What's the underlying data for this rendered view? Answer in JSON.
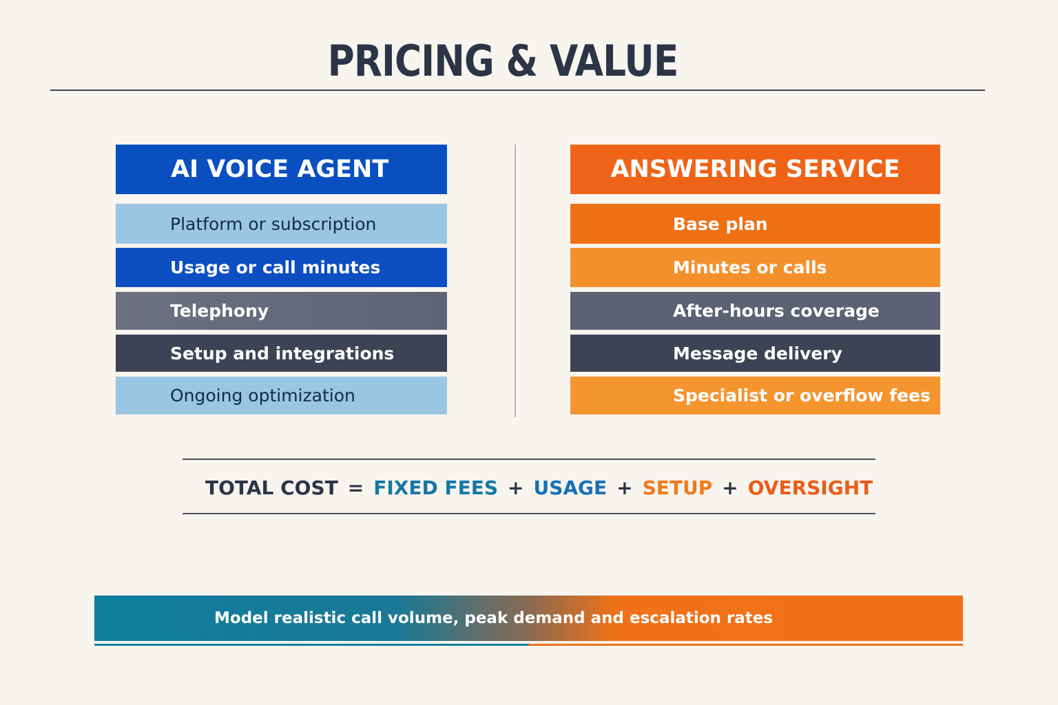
{
  "title": "PRICING & VALUE",
  "ai_voice_agent": {
    "header": "AI VOICE AGENT",
    "items": [
      "Platform or subscription",
      "Usage or call minutes",
      "Telephony",
      "Setup and integrations",
      "Ongoing optimization"
    ]
  },
  "answering_service": {
    "header": "ANSWERING SERVICE",
    "items": [
      "Base plan",
      "Minutes or calls",
      "After-hours coverage",
      "Message delivery",
      "Specialist or overflow fees"
    ]
  },
  "equation": {
    "label": "TOTAL COST",
    "equals": "=",
    "plus": "+",
    "terms": [
      "FIXED FEES",
      "USAGE",
      "SETUP",
      "OVERSIGHT"
    ]
  },
  "banner": {
    "text": "Model realistic call volume, peak demand and escalation rates"
  },
  "colors": {
    "ai_primary": "#0a4fc0",
    "answering_primary": "#ef6318",
    "title": "#2b3547"
  }
}
